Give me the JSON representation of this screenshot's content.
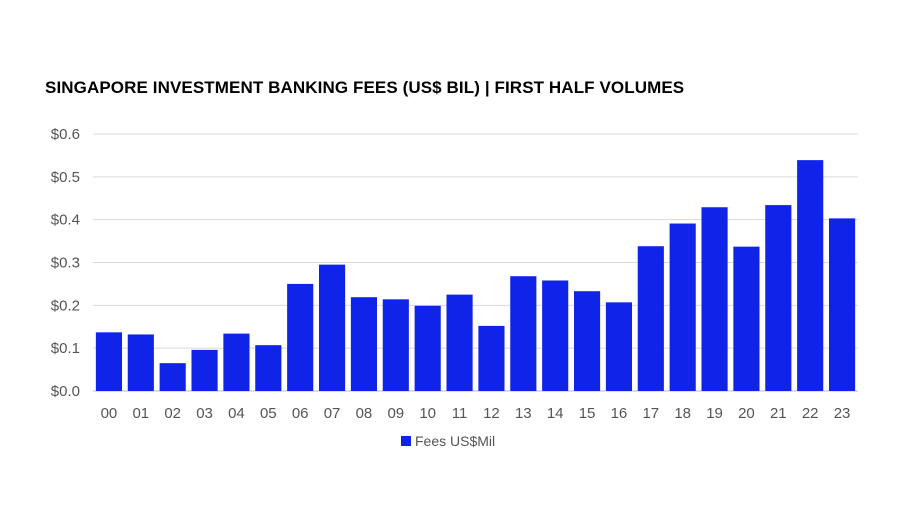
{
  "chart_data": {
    "type": "bar",
    "title": "SINGAPORE INVESTMENT BANKING FEES (US$ BIL)  |   FIRST HALF VOLUMES",
    "xlabel": "",
    "ylabel": "",
    "categories": [
      "00",
      "01",
      "02",
      "03",
      "04",
      "05",
      "06",
      "07",
      "08",
      "09",
      "10",
      "11",
      "12",
      "13",
      "14",
      "15",
      "16",
      "17",
      "18",
      "19",
      "20",
      "21",
      "22",
      "23"
    ],
    "series": [
      {
        "name": "Fees US$Mil",
        "color": "#0f24e8",
        "values": [
          0.137,
          0.132,
          0.065,
          0.096,
          0.134,
          0.107,
          0.25,
          0.295,
          0.219,
          0.214,
          0.199,
          0.225,
          0.152,
          0.268,
          0.258,
          0.233,
          0.207,
          0.338,
          0.391,
          0.429,
          0.337,
          0.434,
          0.539,
          0.403
        ]
      }
    ],
    "ylim": [
      0,
      0.6
    ],
    "yticks": [
      "$0.0",
      "$0.1",
      "$0.2",
      "$0.3",
      "$0.4",
      "$0.5",
      "$0.6"
    ],
    "grid": true,
    "legend_position": "bottom"
  }
}
